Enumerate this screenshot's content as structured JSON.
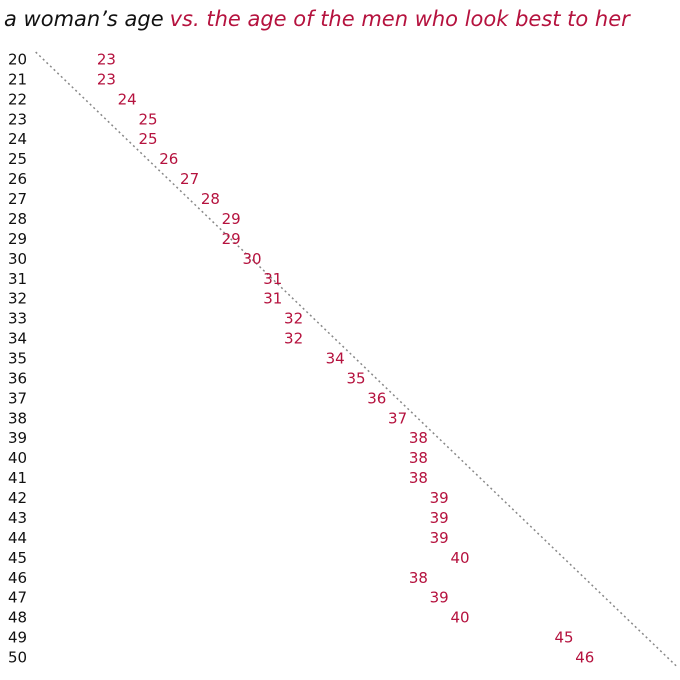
{
  "chart_data": {
    "type": "scatter",
    "title": "a woman’s age",
    "subtitle": "vs. the age of the men who look best to her",
    "title_color": "#111111",
    "color": "#b5123e",
    "categories": [
      20,
      21,
      22,
      23,
      24,
      25,
      26,
      27,
      28,
      29,
      30,
      31,
      32,
      33,
      34,
      35,
      36,
      37,
      38,
      39,
      40,
      41,
      42,
      43,
      44,
      45,
      46,
      47,
      48,
      49,
      50
    ],
    "values": [
      23,
      23,
      24,
      25,
      25,
      26,
      27,
      28,
      29,
      29,
      30,
      31,
      31,
      32,
      32,
      34,
      35,
      36,
      37,
      38,
      38,
      38,
      39,
      39,
      39,
      40,
      38,
      39,
      40,
      45,
      46
    ],
    "xlim": [
      20,
      50
    ],
    "diagonal": true
  }
}
